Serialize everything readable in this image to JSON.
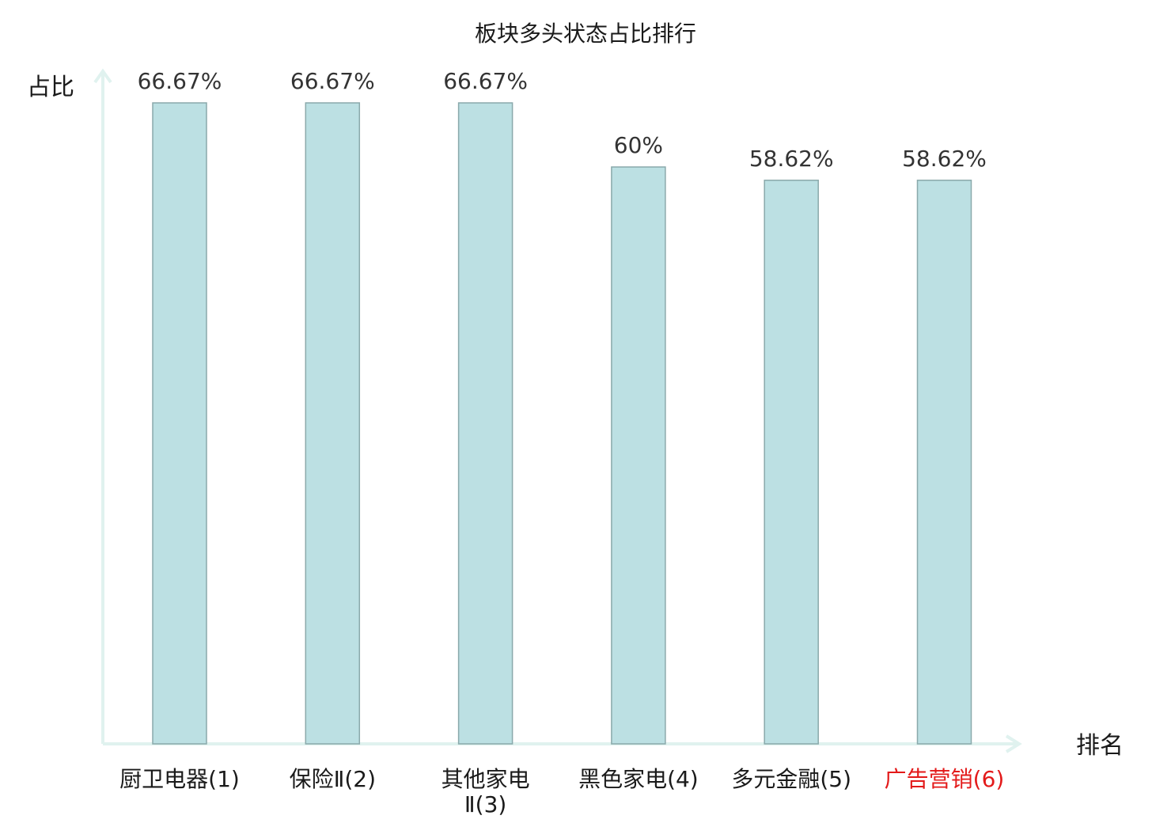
{
  "chart_data": {
    "type": "bar",
    "title": "板块多头状态占比排行",
    "ylabel": "占比",
    "xlabel": "排名",
    "ylim": [
      0,
      66.67
    ],
    "categories": [
      [
        "厨卫电器(1)"
      ],
      [
        "保险Ⅱ(2)"
      ],
      [
        "其他家电",
        "Ⅱ(3)"
      ],
      [
        "黑色家电(4)"
      ],
      [
        "多元金融(5)"
      ],
      [
        "广告营销(6)"
      ]
    ],
    "values": [
      66.67,
      66.67,
      66.67,
      60,
      58.62,
      58.62
    ],
    "value_labels": [
      "66.67%",
      "66.67%",
      "66.67%",
      "60%",
      "58.62%",
      "58.62%"
    ],
    "highlight_index": 5,
    "grid": false
  },
  "colors": {
    "bar_fill": "#bce0e3",
    "bar_stroke": "#8aa9ab",
    "axis": "#e0f2ef",
    "label": "#1a1a1a",
    "highlight": "#e31a1a"
  }
}
